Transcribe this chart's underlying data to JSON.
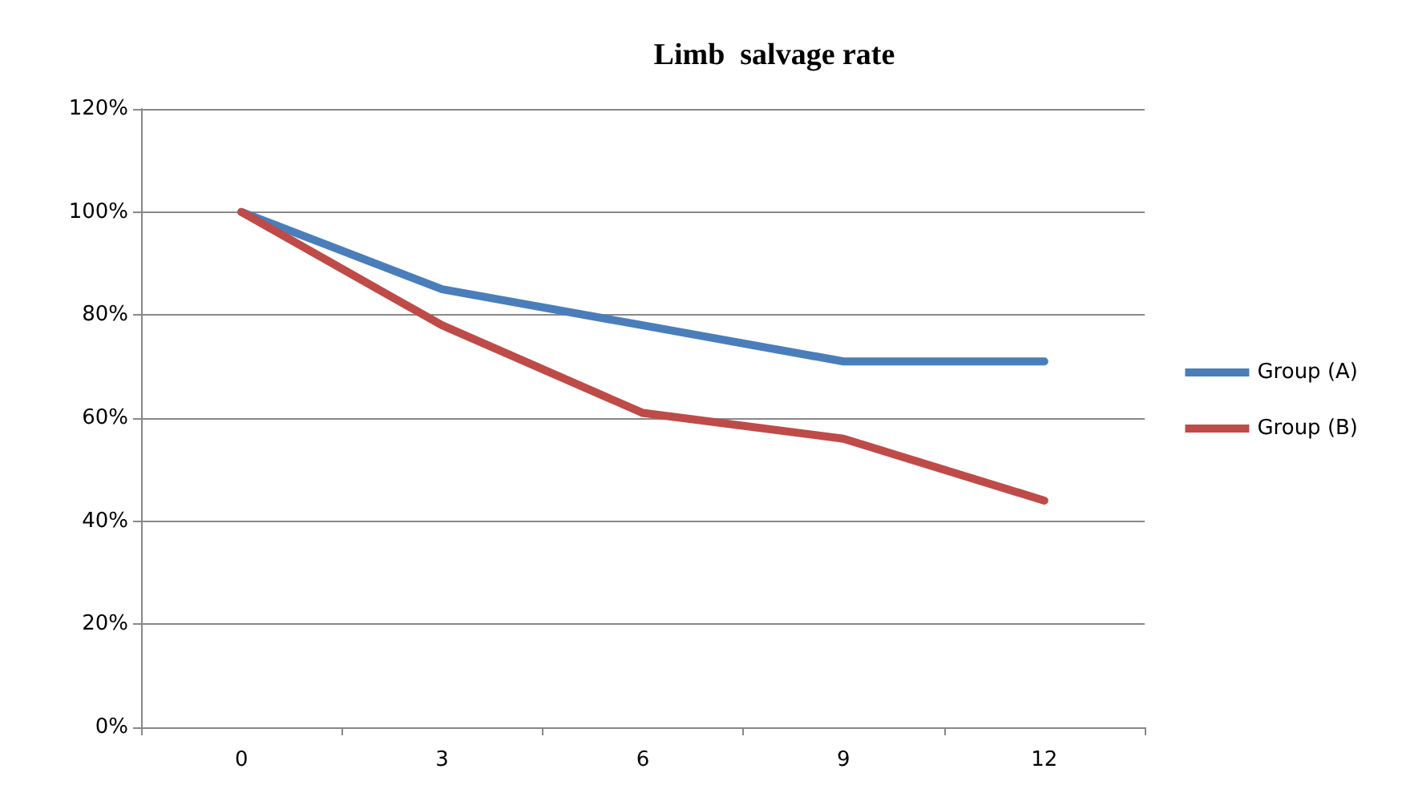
{
  "chart_data": {
    "type": "line",
    "title": "Limb  salvage rate",
    "categories": [
      "0",
      "3",
      "6",
      "9",
      "12"
    ],
    "series": [
      {
        "name": "Group (A)",
        "color": "#4a7ebb",
        "values": [
          100,
          85,
          78,
          71,
          71
        ]
      },
      {
        "name": "Group (B)",
        "color": "#be4b48",
        "values": [
          100,
          78,
          61,
          56,
          44
        ]
      }
    ],
    "ylim": [
      0,
      120
    ],
    "yticks": [
      {
        "value": 0,
        "label": "0%"
      },
      {
        "value": 20,
        "label": "20%"
      },
      {
        "value": 40,
        "label": "40%"
      },
      {
        "value": 60,
        "label": "60%"
      },
      {
        "value": 80,
        "label": "80%"
      },
      {
        "value": 100,
        "label": "100%"
      },
      {
        "value": 120,
        "label": "120%"
      }
    ],
    "grid": "y",
    "legend": "right",
    "marker": "none",
    "line_style": "solid"
  }
}
